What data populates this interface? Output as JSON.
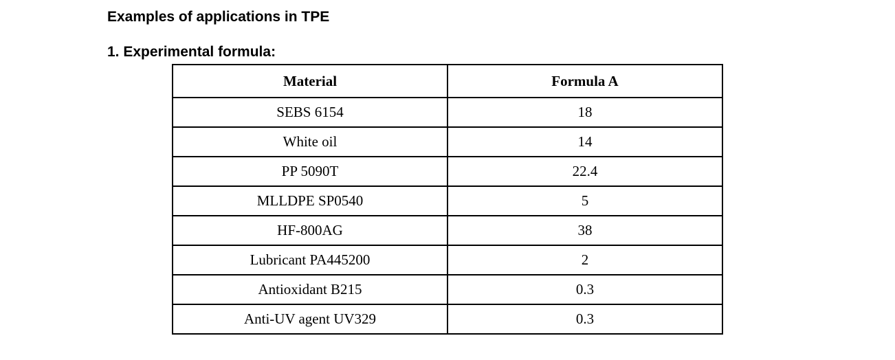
{
  "document": {
    "title": "Examples of applications in TPE",
    "section_title": "1. Experimental formula:"
  },
  "table": {
    "headers": [
      "Material",
      "Formula A"
    ],
    "rows": [
      {
        "material": "SEBS 6154",
        "formula_a": "18"
      },
      {
        "material": "White oil",
        "formula_a": "14"
      },
      {
        "material": "PP 5090T",
        "formula_a": "22.4"
      },
      {
        "material": "MLLDPE SP0540",
        "formula_a": "5"
      },
      {
        "material": "HF-800AG",
        "formula_a": "38"
      },
      {
        "material": "Lubricant PA445200",
        "formula_a": "2"
      },
      {
        "material": "Antioxidant B215",
        "formula_a": "0.3"
      },
      {
        "material": "Anti-UV agent UV329",
        "formula_a": "0.3"
      }
    ]
  }
}
